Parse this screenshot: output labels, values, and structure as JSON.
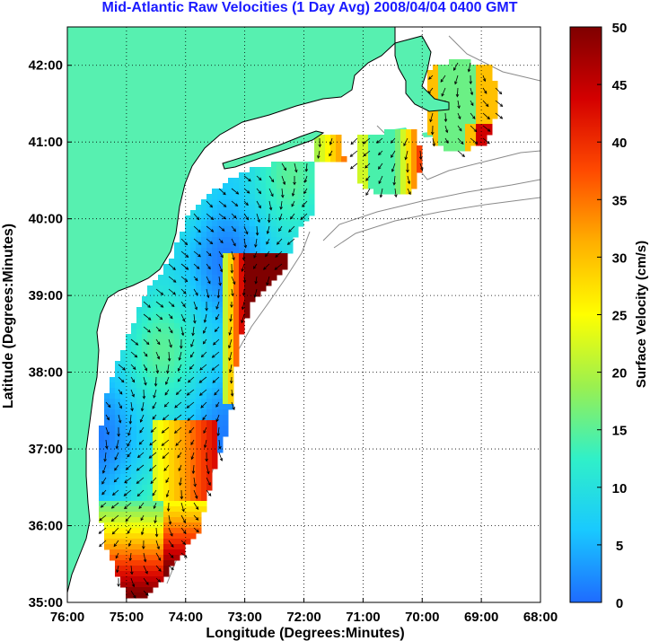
{
  "title": "Mid-Atlantic Raw Velocities (1 Day Avg) 2008/04/04 0400 GMT",
  "x_axis": {
    "label": "Longitude (Degrees:Minutes)",
    "ticks": [
      "76:00",
      "75:00",
      "74:00",
      "73:00",
      "72:00",
      "71:00",
      "70:00",
      "69:00",
      "68:00"
    ]
  },
  "y_axis": {
    "label": "Latitude (Degrees:Minutes)",
    "ticks": [
      "42:00",
      "41:00",
      "40:00",
      "39:00",
      "38:00",
      "37:00",
      "36:00",
      "35:00"
    ]
  },
  "colorbar": {
    "label": "Surface Velocity (cm/s)",
    "ticks": [
      "50",
      "45",
      "40",
      "35",
      "30",
      "25",
      "20",
      "15",
      "10",
      "5",
      "0"
    ],
    "range": [
      0,
      50
    ],
    "colors": [
      "#1e6bff",
      "#19c9ff",
      "#30f0c8",
      "#9af050",
      "#ffff00",
      "#ffb000",
      "#ff4a00",
      "#d40000",
      "#7f0000"
    ]
  },
  "map": {
    "land_color": "#57f0b0",
    "lon_range": [
      -76,
      -68
    ],
    "lat_range": [
      35,
      42.5
    ],
    "grid": "dotted"
  }
}
